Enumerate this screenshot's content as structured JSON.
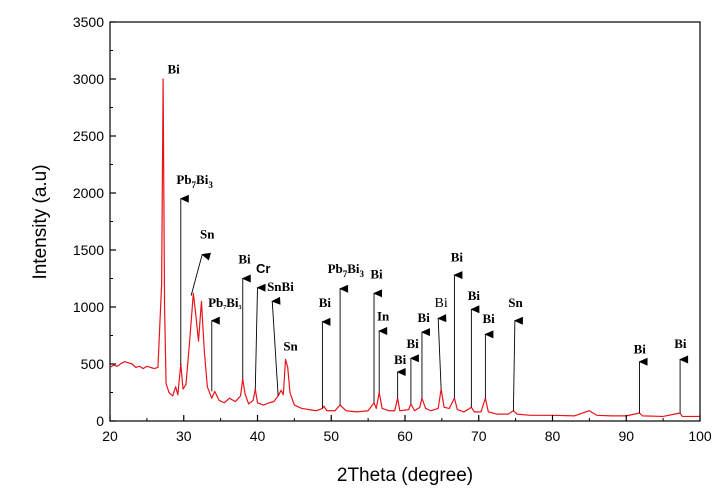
{
  "chart_data": {
    "type": "line",
    "title": "",
    "xlabel": "2Theta (degree)",
    "ylabel": "Intensity (a.u)",
    "xlim": [
      20,
      100
    ],
    "ylim": [
      0,
      3500
    ],
    "x_ticks": [
      20,
      30,
      40,
      50,
      60,
      70,
      80,
      90,
      100
    ],
    "y_ticks": [
      0,
      500,
      1000,
      1500,
      2000,
      2500,
      3000,
      3500
    ],
    "grid": false,
    "legend": "none",
    "line_color": "#e8141c",
    "series": [
      {
        "points": [
          [
            20,
            470
          ],
          [
            20.5,
            490
          ],
          [
            21,
            480
          ],
          [
            21.5,
            505
          ],
          [
            22,
            520
          ],
          [
            22.5,
            510
          ],
          [
            23,
            500
          ],
          [
            23.5,
            470
          ],
          [
            24,
            480
          ],
          [
            24.5,
            460
          ],
          [
            25,
            480
          ],
          [
            25.5,
            470
          ],
          [
            26,
            460
          ],
          [
            26.5,
            470
          ],
          [
            27.0,
            1200
          ],
          [
            27.2,
            3000
          ],
          [
            27.4,
            1000
          ],
          [
            27.6,
            330
          ],
          [
            28,
            250
          ],
          [
            28.5,
            220
          ],
          [
            28.9,
            300
          ],
          [
            29.2,
            230
          ],
          [
            29.6,
            500
          ],
          [
            29.9,
            280
          ],
          [
            30.3,
            320
          ],
          [
            30.8,
            700
          ],
          [
            31.3,
            1120
          ],
          [
            31.6,
            950
          ],
          [
            32.0,
            700
          ],
          [
            32.4,
            1050
          ],
          [
            32.8,
            600
          ],
          [
            33.2,
            300
          ],
          [
            33.8,
            200
          ],
          [
            34.2,
            260
          ],
          [
            34.8,
            180
          ],
          [
            35.5,
            160
          ],
          [
            36.2,
            200
          ],
          [
            37,
            170
          ],
          [
            37.7,
            220
          ],
          [
            38.0,
            370
          ],
          [
            38.3,
            240
          ],
          [
            38.8,
            150
          ],
          [
            39.4,
            180
          ],
          [
            39.7,
            280
          ],
          [
            40.0,
            160
          ],
          [
            40.8,
            140
          ],
          [
            41.6,
            160
          ],
          [
            42.2,
            170
          ],
          [
            42.8,
            220
          ],
          [
            43.2,
            270
          ],
          [
            43.5,
            230
          ],
          [
            43.8,
            540
          ],
          [
            44.1,
            470
          ],
          [
            44.4,
            250
          ],
          [
            45,
            140
          ],
          [
            46,
            110
          ],
          [
            47,
            100
          ],
          [
            48,
            90
          ],
          [
            48.8,
            110
          ],
          [
            49,
            130
          ],
          [
            49.4,
            90
          ],
          [
            50.5,
            90
          ],
          [
            51.2,
            140
          ],
          [
            52,
            90
          ],
          [
            53.5,
            80
          ],
          [
            55,
            90
          ],
          [
            55.8,
            160
          ],
          [
            56.1,
            110
          ],
          [
            56.5,
            250
          ],
          [
            56.9,
            110
          ],
          [
            57.8,
            90
          ],
          [
            58.6,
            90
          ],
          [
            59.0,
            200
          ],
          [
            59.3,
            90
          ],
          [
            60.5,
            100
          ],
          [
            60.8,
            150
          ],
          [
            61.3,
            90
          ],
          [
            62.0,
            120
          ],
          [
            62.3,
            200
          ],
          [
            62.8,
            110
          ],
          [
            63.5,
            90
          ],
          [
            64.5,
            110
          ],
          [
            64.9,
            280
          ],
          [
            65.3,
            120
          ],
          [
            66.0,
            110
          ],
          [
            66.7,
            200
          ],
          [
            67.1,
            100
          ],
          [
            68,
            80
          ],
          [
            69.0,
            120
          ],
          [
            69.4,
            80
          ],
          [
            70.3,
            80
          ],
          [
            70.9,
            200
          ],
          [
            71.3,
            80
          ],
          [
            72.5,
            60
          ],
          [
            74.0,
            60
          ],
          [
            74.7,
            90
          ],
          [
            75.2,
            60
          ],
          [
            77,
            50
          ],
          [
            80,
            50
          ],
          [
            83,
            45
          ],
          [
            85,
            90
          ],
          [
            86,
            50
          ],
          [
            88,
            45
          ],
          [
            90,
            45
          ],
          [
            91.8,
            70
          ],
          [
            92.2,
            45
          ],
          [
            95,
            40
          ],
          [
            97.3,
            70
          ],
          [
            97.6,
            40
          ],
          [
            100,
            40
          ]
        ]
      }
    ],
    "annotations": [
      {
        "label": "Bi",
        "sub": "",
        "tail": "",
        "label_x": 27.8,
        "label_y": 3050,
        "arrow": null
      },
      {
        "label": "Pb",
        "sub": "7",
        "tail": "Bi",
        "sub2": "3",
        "label_x": 29.0,
        "label_y": 2080,
        "arrow": [
          [
            29.6,
            1950
          ],
          [
            29.6,
            490
          ]
        ]
      },
      {
        "label": "Sn",
        "sub": "",
        "tail": "",
        "label_x": 32.2,
        "label_y": 1600,
        "arrow": [
          [
            32.5,
            1460
          ],
          [
            31.0,
            1100
          ]
        ]
      },
      {
        "label": "Pb",
        "sub": "7",
        "tail": "Bi",
        "sub2": "3",
        "label_x": 33.3,
        "label_y": 1000,
        "small": true,
        "arrow": [
          [
            33.8,
            880
          ],
          [
            33.8,
            260
          ]
        ]
      },
      {
        "label": "Bi",
        "sub": "",
        "tail": "",
        "label_x": 37.4,
        "label_y": 1380,
        "arrow": [
          [
            38.0,
            1250
          ],
          [
            38.0,
            370
          ]
        ]
      },
      {
        "label": "Cr",
        "sub": "",
        "tail": "",
        "label_x": 39.8,
        "label_y": 1300,
        "sans": true,
        "arrow": [
          [
            40.0,
            1170
          ],
          [
            39.7,
            280
          ]
        ]
      },
      {
        "label": "SnBi",
        "sub": "",
        "tail": "",
        "label_x": 41.3,
        "label_y": 1140,
        "arrow": [
          [
            42.0,
            1050
          ],
          [
            42.8,
            220
          ]
        ]
      },
      {
        "label": "Sn",
        "sub": "",
        "tail": "",
        "label_x": 43.5,
        "label_y": 620,
        "arrow": null
      },
      {
        "label": "Bi",
        "sub": "",
        "tail": "",
        "label_x": 48.3,
        "label_y": 1000,
        "arrow": [
          [
            48.8,
            870
          ],
          [
            48.8,
            110
          ]
        ]
      },
      {
        "label": "Pb",
        "sub": "7",
        "tail": "Bi",
        "sub2": "3",
        "label_x": 49.5,
        "label_y": 1300,
        "arrow": [
          [
            51.2,
            1160
          ],
          [
            51.2,
            140
          ]
        ]
      },
      {
        "label": "Bi",
        "sub": "",
        "tail": "",
        "label_x": 55.3,
        "label_y": 1250,
        "arrow": [
          [
            55.8,
            1120
          ],
          [
            55.8,
            160
          ]
        ]
      },
      {
        "label": "In",
        "sub": "",
        "tail": "",
        "label_x": 56.2,
        "label_y": 880,
        "arrow": [
          [
            56.5,
            790
          ],
          [
            56.5,
            250
          ]
        ]
      },
      {
        "label": "Bi",
        "sub": "",
        "tail": "",
        "label_x": 58.5,
        "label_y": 500,
        "arrow": [
          [
            59.0,
            430
          ],
          [
            59.0,
            200
          ]
        ]
      },
      {
        "label": "Bi",
        "sub": "",
        "tail": "",
        "label_x": 60.2,
        "label_y": 640,
        "arrow": [
          [
            60.8,
            550
          ],
          [
            60.8,
            150
          ]
        ]
      },
      {
        "label": "Bi",
        "sub": "",
        "tail": "",
        "label_x": 61.7,
        "label_y": 870,
        "arrow": [
          [
            62.3,
            780
          ],
          [
            62.3,
            200
          ]
        ]
      },
      {
        "label": "Bi",
        "sub": "",
        "tail": "",
        "label_x": 64.0,
        "label_y": 1000,
        "light": true,
        "arrow": [
          [
            64.5,
            900
          ],
          [
            64.9,
            280
          ]
        ]
      },
      {
        "label": "Bi",
        "sub": "",
        "tail": "",
        "label_x": 66.2,
        "label_y": 1400,
        "arrow": [
          [
            66.7,
            1280
          ],
          [
            66.7,
            200
          ]
        ]
      },
      {
        "label": "Bi",
        "sub": "",
        "tail": "",
        "label_x": 68.5,
        "label_y": 1060,
        "arrow": [
          [
            69.0,
            980
          ],
          [
            69.0,
            120
          ]
        ]
      },
      {
        "label": "Bi",
        "sub": "",
        "tail": "",
        "label_x": 70.5,
        "label_y": 860,
        "arrow": [
          [
            70.9,
            760
          ],
          [
            70.9,
            200
          ]
        ]
      },
      {
        "label": "Sn",
        "sub": "",
        "tail": "",
        "label_x": 74.0,
        "label_y": 1000,
        "arrow": [
          [
            74.9,
            880
          ],
          [
            74.7,
            90
          ]
        ]
      },
      {
        "label": "Bi",
        "sub": "",
        "tail": "",
        "label_x": 91.0,
        "label_y": 590,
        "arrow": [
          [
            91.8,
            520
          ],
          [
            91.8,
            70
          ]
        ]
      },
      {
        "label": "Bi",
        "sub": "",
        "tail": "",
        "label_x": 96.5,
        "label_y": 640,
        "arrow": [
          [
            97.3,
            540
          ],
          [
            97.3,
            70
          ]
        ]
      }
    ]
  }
}
